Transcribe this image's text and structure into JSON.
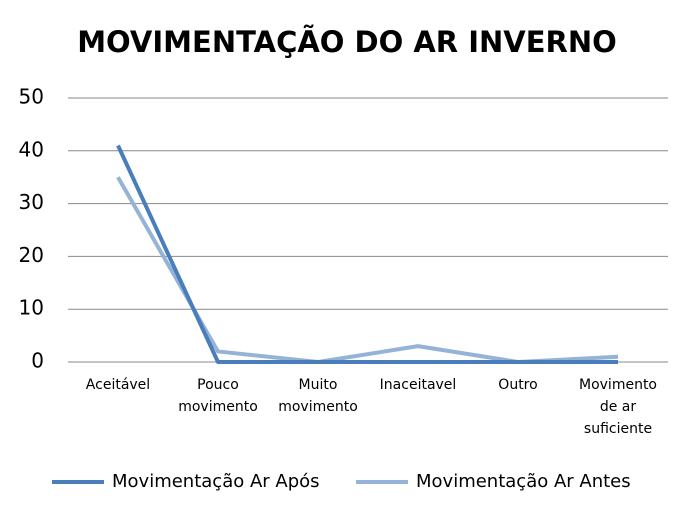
{
  "chart_data": {
    "type": "line",
    "title": "MOVIMENTAÇÃO DO AR INVERNO",
    "categories": [
      "Aceitável",
      "Pouco movimento",
      "Muito movimento",
      "Inaceitavel",
      "Outro",
      "Movimento de ar suficiente"
    ],
    "series": [
      {
        "name": "Movimentação Ar Após",
        "color": "#4a7ebb",
        "values": [
          41,
          0,
          0,
          0,
          0,
          0
        ]
      },
      {
        "name": "Movimentação Ar Antes",
        "color": "#95b3d7",
        "values": [
          35,
          2,
          0,
          3,
          0,
          1
        ]
      }
    ],
    "ylim": [
      0,
      50
    ],
    "yticks": [
      0,
      10,
      20,
      30,
      40,
      50
    ],
    "grid": true,
    "legend": "bottom"
  }
}
